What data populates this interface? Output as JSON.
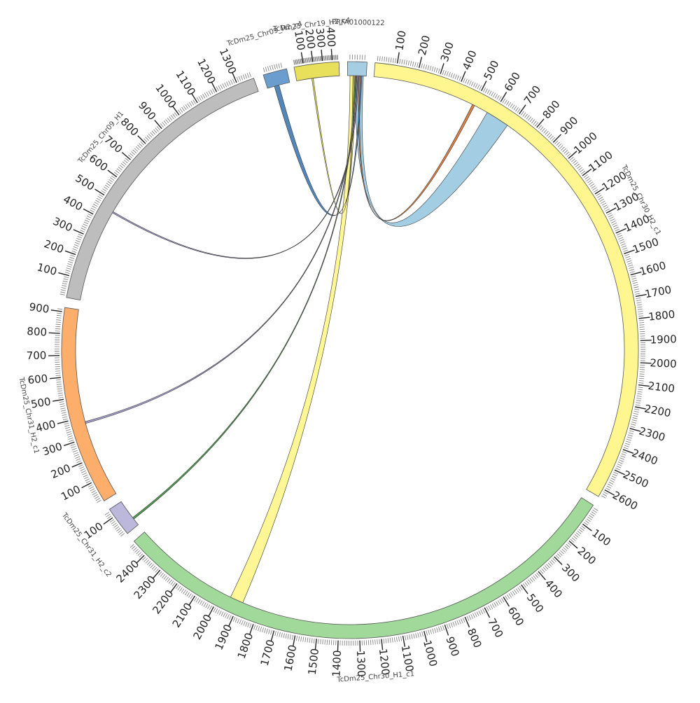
{
  "chart_data": {
    "type": "chord",
    "segments": [
      {
        "id": "PRFA01000122",
        "label": "PRFA01000122",
        "length": 80,
        "color": "#a6cee3",
        "ticks": []
      },
      {
        "id": "c30H2c1",
        "label": "TcDm25_Chr30_H2_c1",
        "length": 2640,
        "color": "#fff68f",
        "ticks": [
          "100",
          "200",
          "300",
          "400",
          "500",
          "600",
          "700",
          "800",
          "900",
          "1000",
          "1100",
          "1200",
          "1300",
          "1400",
          "1500",
          "1600",
          "1700",
          "1800",
          "1900",
          "2000",
          "2100",
          "2200",
          "2300",
          "2400",
          "2500",
          "2600"
        ]
      },
      {
        "id": "c30H1c1",
        "label": "TcDm25_Chr30_H1_c1",
        "length": 2480,
        "color": "#a1d99b",
        "ticks": [
          "100",
          "200",
          "300",
          "400",
          "500",
          "600",
          "700",
          "800",
          "900",
          "1000",
          "1100",
          "1200",
          "1300",
          "1400",
          "1500",
          "1600",
          "1700",
          "1800",
          "1900",
          "2000",
          "2100",
          "2200",
          "2300",
          "2400"
        ]
      },
      {
        "id": "c31H2c2",
        "label": "TcDm25_Chr31_H2_c2",
        "length": 140,
        "color": "#bcb8dc",
        "ticks": [
          "100"
        ]
      },
      {
        "id": "c31H2c1",
        "label": "TcDm25_Chr31_H2_c1",
        "length": 920,
        "color": "#fdae6b",
        "ticks": [
          "100",
          "200",
          "300",
          "400",
          "500",
          "600",
          "700",
          "800",
          "900"
        ]
      },
      {
        "id": "c09H1",
        "label": "TcDm25_Chr09_H1",
        "length": 1380,
        "color": "#bdbdbd",
        "ticks": [
          "100",
          "200",
          "300",
          "400",
          "500",
          "600",
          "700",
          "800",
          "900",
          "1000",
          "1100",
          "1200",
          "1300"
        ]
      },
      {
        "id": "c09H2c4",
        "label": "TcDm25_Chr09_H2_c4",
        "length": 110,
        "color": "#6b9ecf",
        "ticks": []
      },
      {
        "id": "c19H2c4",
        "label": "TcDm25_Chr19_H2_c4",
        "length": 470,
        "color": "#e8e05a",
        "ticks": [
          "100",
          "200",
          "300",
          "400"
        ]
      }
    ],
    "links": [
      {
        "source": "PRFA01000122",
        "target": "c30H2c1",
        "color": "#9ecae1"
      },
      {
        "source": "PRFA01000122",
        "target": "c30H2c1",
        "color": "#e07a3a"
      },
      {
        "source": "PRFA01000122",
        "target": "c30H1c1",
        "color": "#fff68f"
      },
      {
        "source": "PRFA01000122",
        "target": "c31H2c2",
        "color": "#4a9a4a"
      },
      {
        "source": "PRFA01000122",
        "target": "c31H2c1",
        "color": "#9e9ac8"
      },
      {
        "source": "PRFA01000122",
        "target": "c09H1",
        "color": "#9e9ac8"
      },
      {
        "source": "PRFA01000122",
        "target": "c09H2c4",
        "color": "#4a7fb5"
      },
      {
        "source": "PRFA01000122",
        "target": "c19H2c4",
        "color": "#e8e05a"
      }
    ]
  }
}
